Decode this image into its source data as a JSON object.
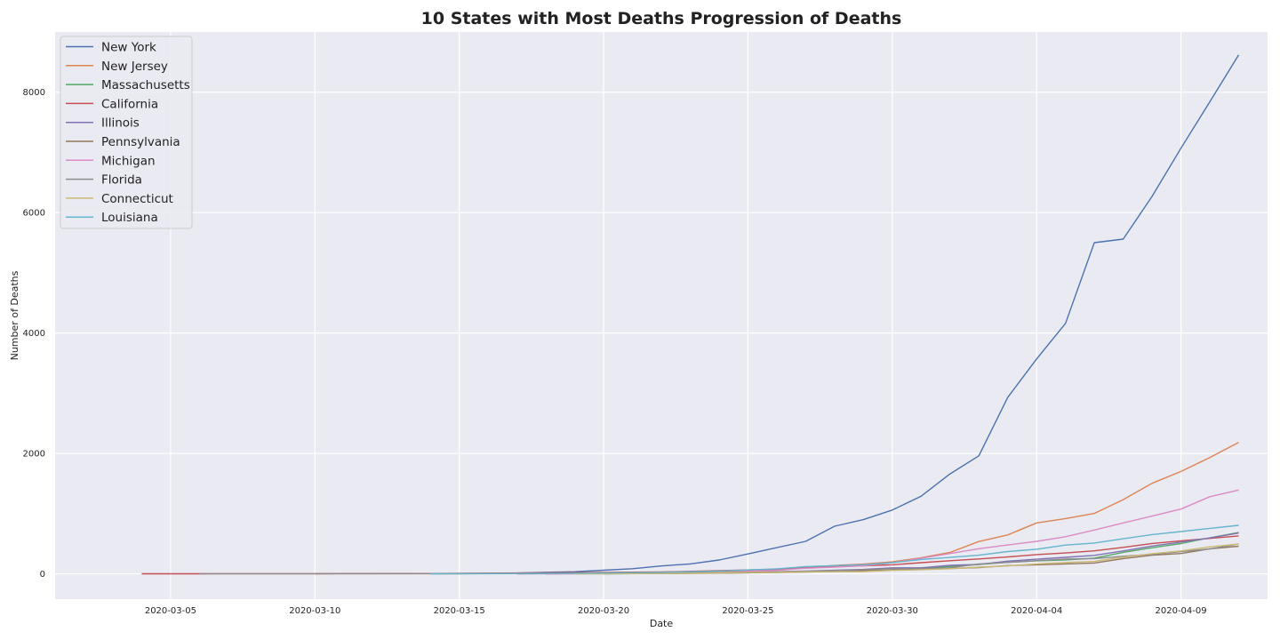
{
  "chart_data": {
    "type": "line",
    "title": "10 States with Most Deaths Progression of Deaths",
    "xlabel": "Date",
    "ylabel": "Number of Deaths",
    "ylim": [
      -420,
      9000
    ],
    "xlim": [
      "2020-03-01",
      "2020-04-12"
    ],
    "grid": true,
    "legend_position": "top-left",
    "x_ticks": [
      "2020-03-05",
      "2020-03-10",
      "2020-03-15",
      "2020-03-20",
      "2020-03-25",
      "2020-03-30",
      "2020-04-04",
      "2020-04-09"
    ],
    "y_ticks": [
      0,
      2000,
      4000,
      6000,
      8000
    ],
    "background_color": "#eaeaf2",
    "series": [
      {
        "name": "New York",
        "color": "#4c72b0",
        "points": [
          [
            "2020-03-14",
            2
          ],
          [
            "2020-03-15",
            3
          ],
          [
            "2020-03-16",
            7
          ],
          [
            "2020-03-17",
            13
          ],
          [
            "2020-03-18",
            26
          ],
          [
            "2020-03-19",
            35
          ],
          [
            "2020-03-20",
            60
          ],
          [
            "2020-03-21",
            85
          ],
          [
            "2020-03-22",
            130
          ],
          [
            "2020-03-23",
            165
          ],
          [
            "2020-03-24",
            230
          ],
          [
            "2020-03-25",
            330
          ],
          [
            "2020-03-26",
            435
          ],
          [
            "2020-03-27",
            540
          ],
          [
            "2020-03-28",
            790
          ],
          [
            "2020-03-29",
            900
          ],
          [
            "2020-03-30",
            1060
          ],
          [
            "2020-03-31",
            1290
          ],
          [
            "2020-04-01",
            1660
          ],
          [
            "2020-04-02",
            1960
          ],
          [
            "2020-04-03",
            2930
          ],
          [
            "2020-04-04",
            3570
          ],
          [
            "2020-04-05",
            4160
          ],
          [
            "2020-04-06",
            5500
          ],
          [
            "2020-04-07",
            5560
          ],
          [
            "2020-04-08",
            6270
          ],
          [
            "2020-04-09",
            7070
          ],
          [
            "2020-04-10",
            7840
          ],
          [
            "2020-04-11",
            8620
          ]
        ]
      },
      {
        "name": "New Jersey",
        "color": "#dd8452",
        "points": [
          [
            "2020-03-10",
            1
          ],
          [
            "2020-03-15",
            3
          ],
          [
            "2020-03-18",
            9
          ],
          [
            "2020-03-20",
            16
          ],
          [
            "2020-03-22",
            27
          ],
          [
            "2020-03-24",
            44
          ],
          [
            "2020-03-26",
            62
          ],
          [
            "2020-03-28",
            140
          ],
          [
            "2020-03-29",
            161
          ],
          [
            "2020-03-30",
            198
          ],
          [
            "2020-03-31",
            267
          ],
          [
            "2020-04-01",
            355
          ],
          [
            "2020-04-02",
            537
          ],
          [
            "2020-04-03",
            646
          ],
          [
            "2020-04-04",
            846
          ],
          [
            "2020-04-05",
            917
          ],
          [
            "2020-04-06",
            1003
          ],
          [
            "2020-04-07",
            1232
          ],
          [
            "2020-04-08",
            1504
          ],
          [
            "2020-04-09",
            1700
          ],
          [
            "2020-04-10",
            1932
          ],
          [
            "2020-04-11",
            2183
          ]
        ]
      },
      {
        "name": "Massachusetts",
        "color": "#55a868",
        "points": [
          [
            "2020-03-20",
            1
          ],
          [
            "2020-03-22",
            5
          ],
          [
            "2020-03-24",
            11
          ],
          [
            "2020-03-26",
            25
          ],
          [
            "2020-03-28",
            44
          ],
          [
            "2020-03-30",
            62
          ],
          [
            "2020-03-31",
            89
          ],
          [
            "2020-04-01",
            122
          ],
          [
            "2020-04-02",
            154
          ],
          [
            "2020-04-03",
            192
          ],
          [
            "2020-04-04",
            216
          ],
          [
            "2020-04-05",
            231
          ],
          [
            "2020-04-06",
            260
          ],
          [
            "2020-04-07",
            356
          ],
          [
            "2020-04-08",
            433
          ],
          [
            "2020-04-09",
            503
          ],
          [
            "2020-04-10",
            599
          ],
          [
            "2020-04-11",
            686
          ]
        ]
      },
      {
        "name": "California",
        "color": "#c44e52",
        "points": [
          [
            "2020-03-04",
            1
          ],
          [
            "2020-03-06",
            1
          ],
          [
            "2020-03-10",
            3
          ],
          [
            "2020-03-14",
            5
          ],
          [
            "2020-03-16",
            11
          ],
          [
            "2020-03-18",
            19
          ],
          [
            "2020-03-20",
            24
          ],
          [
            "2020-03-22",
            30
          ],
          [
            "2020-03-24",
            52
          ],
          [
            "2020-03-26",
            75
          ],
          [
            "2020-03-27",
            101
          ],
          [
            "2020-03-28",
            119
          ],
          [
            "2020-03-29",
            133
          ],
          [
            "2020-03-30",
            150
          ],
          [
            "2020-03-31",
            185
          ],
          [
            "2020-04-01",
            218
          ],
          [
            "2020-04-02",
            248
          ],
          [
            "2020-04-03",
            280
          ],
          [
            "2020-04-04",
            320
          ],
          [
            "2020-04-05",
            347
          ],
          [
            "2020-04-06",
            381
          ],
          [
            "2020-04-07",
            440
          ],
          [
            "2020-04-08",
            505
          ],
          [
            "2020-04-09",
            548
          ],
          [
            "2020-04-10",
            588
          ],
          [
            "2020-04-11",
            630
          ]
        ]
      },
      {
        "name": "Illinois",
        "color": "#8172b3",
        "points": [
          [
            "2020-03-17",
            1
          ],
          [
            "2020-03-19",
            4
          ],
          [
            "2020-03-21",
            9
          ],
          [
            "2020-03-23",
            16
          ],
          [
            "2020-03-25",
            26
          ],
          [
            "2020-03-27",
            47
          ],
          [
            "2020-03-29",
            73
          ],
          [
            "2020-03-30",
            99
          ],
          [
            "2020-03-31",
            99
          ],
          [
            "2020-04-01",
            141
          ],
          [
            "2020-04-02",
            157
          ],
          [
            "2020-04-03",
            210
          ],
          [
            "2020-04-04",
            243
          ],
          [
            "2020-04-05",
            274
          ],
          [
            "2020-04-06",
            307
          ],
          [
            "2020-04-07",
            380
          ],
          [
            "2020-04-08",
            462
          ],
          [
            "2020-04-09",
            528
          ],
          [
            "2020-04-10",
            596
          ],
          [
            "2020-04-11",
            677
          ]
        ]
      },
      {
        "name": "Pennsylvania",
        "color": "#937860",
        "points": [
          [
            "2020-03-18",
            1
          ],
          [
            "2020-03-20",
            2
          ],
          [
            "2020-03-22",
            6
          ],
          [
            "2020-03-24",
            11
          ],
          [
            "2020-03-26",
            22
          ],
          [
            "2020-03-28",
            38
          ],
          [
            "2020-03-30",
            63
          ],
          [
            "2020-03-31",
            73
          ],
          [
            "2020-04-01",
            90
          ],
          [
            "2020-04-02",
            102
          ],
          [
            "2020-04-03",
            136
          ],
          [
            "2020-04-04",
            150
          ],
          [
            "2020-04-05",
            165
          ],
          [
            "2020-04-06",
            180
          ],
          [
            "2020-04-07",
            253
          ],
          [
            "2020-04-08",
            310
          ],
          [
            "2020-04-09",
            338
          ],
          [
            "2020-04-10",
            416
          ],
          [
            "2020-04-11",
            459
          ]
        ]
      },
      {
        "name": "Michigan",
        "color": "#da8bc3",
        "points": [
          [
            "2020-03-18",
            1
          ],
          [
            "2020-03-20",
            4
          ],
          [
            "2020-03-22",
            15
          ],
          [
            "2020-03-24",
            24
          ],
          [
            "2020-03-25",
            43
          ],
          [
            "2020-03-26",
            60
          ],
          [
            "2020-03-27",
            92
          ],
          [
            "2020-03-28",
            111
          ],
          [
            "2020-03-29",
            132
          ],
          [
            "2020-03-30",
            184
          ],
          [
            "2020-03-31",
            259
          ],
          [
            "2020-04-01",
            337
          ],
          [
            "2020-04-02",
            417
          ],
          [
            "2020-04-03",
            479
          ],
          [
            "2020-04-04",
            540
          ],
          [
            "2020-04-05",
            617
          ],
          [
            "2020-04-06",
            727
          ],
          [
            "2020-04-07",
            845
          ],
          [
            "2020-04-08",
            959
          ],
          [
            "2020-04-09",
            1076
          ],
          [
            "2020-04-10",
            1281
          ],
          [
            "2020-04-11",
            1392
          ]
        ]
      },
      {
        "name": "Florida",
        "color": "#8c8c8c",
        "points": [
          [
            "2020-03-06",
            2
          ],
          [
            "2020-03-10",
            2
          ],
          [
            "2020-03-14",
            4
          ],
          [
            "2020-03-16",
            6
          ],
          [
            "2020-03-18",
            8
          ],
          [
            "2020-03-20",
            10
          ],
          [
            "2020-03-22",
            14
          ],
          [
            "2020-03-24",
            22
          ],
          [
            "2020-03-26",
            30
          ],
          [
            "2020-03-28",
            52
          ],
          [
            "2020-03-30",
            85
          ],
          [
            "2020-03-31",
            85
          ],
          [
            "2020-04-01",
            101
          ],
          [
            "2020-04-02",
            163
          ],
          [
            "2020-04-03",
            190
          ],
          [
            "2020-04-04",
            220
          ],
          [
            "2020-04-05",
            246
          ],
          [
            "2020-04-06",
            253
          ],
          [
            "2020-04-07",
            291
          ],
          [
            "2020-04-08",
            322
          ],
          [
            "2020-04-09",
            370
          ],
          [
            "2020-04-10",
            413
          ],
          [
            "2020-04-11",
            497
          ]
        ]
      },
      {
        "name": "Connecticut",
        "color": "#ccb974",
        "points": [
          [
            "2020-03-19",
            1
          ],
          [
            "2020-03-21",
            4
          ],
          [
            "2020-03-23",
            10
          ],
          [
            "2020-03-25",
            21
          ],
          [
            "2020-03-27",
            33
          ],
          [
            "2020-03-29",
            36
          ],
          [
            "2020-03-30",
            57
          ],
          [
            "2020-03-31",
            69
          ],
          [
            "2020-04-01",
            85
          ],
          [
            "2020-04-02",
            112
          ],
          [
            "2020-04-03",
            131
          ],
          [
            "2020-04-04",
            165
          ],
          [
            "2020-04-05",
            189
          ],
          [
            "2020-04-06",
            206
          ],
          [
            "2020-04-07",
            277
          ],
          [
            "2020-04-08",
            335
          ],
          [
            "2020-04-09",
            380
          ],
          [
            "2020-04-10",
            448
          ],
          [
            "2020-04-11",
            494
          ]
        ]
      },
      {
        "name": "Louisiana",
        "color": "#64b5cd",
        "points": [
          [
            "2020-03-14",
            1
          ],
          [
            "2020-03-16",
            2
          ],
          [
            "2020-03-18",
            7
          ],
          [
            "2020-03-20",
            14
          ],
          [
            "2020-03-22",
            25
          ],
          [
            "2020-03-24",
            46
          ],
          [
            "2020-03-25",
            65
          ],
          [
            "2020-03-26",
            83
          ],
          [
            "2020-03-27",
            119
          ],
          [
            "2020-03-28",
            137
          ],
          [
            "2020-03-29",
            151
          ],
          [
            "2020-03-30",
            185
          ],
          [
            "2020-03-31",
            239
          ],
          [
            "2020-04-01",
            273
          ],
          [
            "2020-04-02",
            310
          ],
          [
            "2020-04-03",
            370
          ],
          [
            "2020-04-04",
            409
          ],
          [
            "2020-04-05",
            477
          ],
          [
            "2020-04-06",
            512
          ],
          [
            "2020-04-07",
            582
          ],
          [
            "2020-04-08",
            652
          ],
          [
            "2020-04-09",
            702
          ],
          [
            "2020-04-10",
            755
          ],
          [
            "2020-04-11",
            806
          ]
        ]
      }
    ]
  }
}
